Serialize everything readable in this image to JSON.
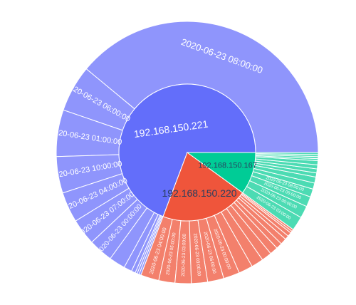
{
  "chart_data": {
    "type": "sunburst",
    "title": "",
    "colors": {
      "192.168.150.221": "#636efa",
      "192.168.150.220": "#ef553b",
      "192.168.150.167": "#00cc96",
      "192.168.150.221-outer": "#8f95fc",
      "192.168.150.220-outer": "#f3806c",
      "192.168.150.167-outer": "#4cdbb3"
    },
    "nodes": [
      {
        "label": "192.168.150.221",
        "value": 277,
        "children": [
          {
            "label": "2020-06-23 08:00:00",
            "value": 156
          },
          {
            "label": "2020-06-23 06:00:00",
            "value": 23
          },
          {
            "label": "2020-06-23 01:00:00",
            "value": 23
          },
          {
            "label": "2020-06-23 10:00:00",
            "value": 18
          },
          {
            "label": "2020-06-23 04:00:00",
            "value": 15
          },
          {
            "label": "2020-06-23 07:00:00",
            "value": 13
          },
          {
            "label": "2020-06-23 00:00:00",
            "value": 12
          },
          {
            "label": "",
            "value": 8
          },
          {
            "label": "",
            "value": 4
          },
          {
            "label": "",
            "value": 2
          },
          {
            "label": "",
            "value": 1
          },
          {
            "label": "",
            "value": 1
          },
          {
            "label": "",
            "value": 1
          }
        ]
      },
      {
        "label": "192.168.150.220",
        "value": 83,
        "children": [
          {
            "label": "2020-06-23 04:00:00",
            "value": 9
          },
          {
            "label": "2020-06-23 05:00:00",
            "value": 8
          },
          {
            "label": "2020-06-23 03:00:00",
            "value": 8
          },
          {
            "label": "2020-06-23 03:00:00",
            "value": 8
          },
          {
            "label": "2020-06-23 06:00:00",
            "value": 8
          },
          {
            "label": "2020-06-23 00:00:00",
            "value": 8
          },
          {
            "label": "",
            "value": 7
          },
          {
            "label": "",
            "value": 6
          },
          {
            "label": "",
            "value": 5
          },
          {
            "label": "",
            "value": 4
          },
          {
            "label": "",
            "value": 3
          },
          {
            "label": "",
            "value": 3
          },
          {
            "label": "",
            "value": 2
          },
          {
            "label": "",
            "value": 2
          },
          {
            "label": "",
            "value": 1
          },
          {
            "label": "",
            "value": 1
          }
        ]
      },
      {
        "label": "192.168.150.167",
        "value": 40,
        "children": [
          {
            "label": "2020-06-23 03:00:00",
            "value": 7
          },
          {
            "label": "2020-06-23 00:00:00",
            "value": 6
          },
          {
            "label": "2020-06-23 05:00:00",
            "value": 5
          },
          {
            "label": "2020-06-23 08:00:00",
            "value": 4
          },
          {
            "label": "",
            "value": 3
          },
          {
            "label": "",
            "value": 3
          },
          {
            "label": "",
            "value": 2
          },
          {
            "label": "",
            "value": 2
          },
          {
            "label": "",
            "value": 2
          },
          {
            "label": "",
            "value": 2
          },
          {
            "label": "",
            "value": 1
          },
          {
            "label": "",
            "value": 1
          },
          {
            "label": "",
            "value": 1
          },
          {
            "label": "",
            "value": 1
          }
        ]
      }
    ]
  }
}
